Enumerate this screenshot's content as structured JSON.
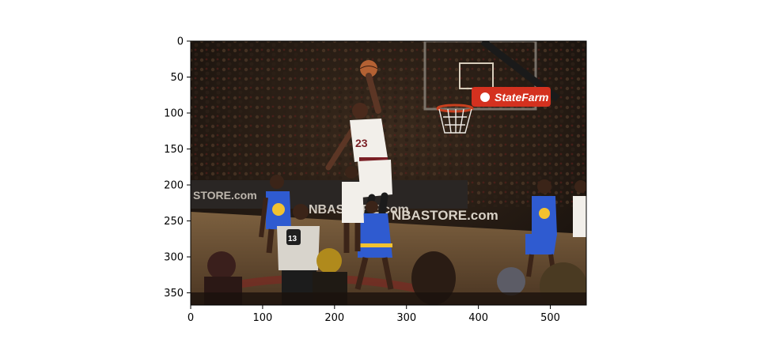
{
  "figure": {
    "kind": "image-plot",
    "subject": "basketball-dunk-photo",
    "x_ticks": [
      0,
      100,
      200,
      300,
      400,
      500
    ],
    "y_ticks": [
      0,
      50,
      100,
      150,
      200,
      250,
      300,
      350
    ],
    "x_range": [
      0,
      550
    ],
    "y_range": [
      0,
      367
    ],
    "y_inverted": true
  },
  "photo_text": {
    "sponsor_sign": "StateFarm",
    "banner_1": "NBASTORE.com",
    "banner_2": "NBASTORE.com",
    "banner_3": "STORE.com",
    "jersey_dunker": "23",
    "jersey_referee": "13"
  },
  "colors": {
    "arena_dark": "#1b140f",
    "court_floor": "#6a5033",
    "home_jersey": "#f2efea",
    "away_jersey": "#2f5bd0",
    "away_trim": "#f2c230",
    "sponsor_red": "#d4311f"
  }
}
